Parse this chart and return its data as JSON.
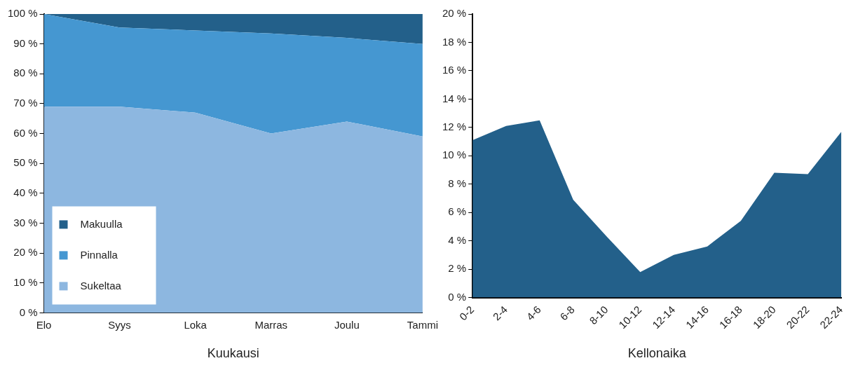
{
  "chart_data": [
    {
      "type": "area",
      "xlabel": "Kuukausi",
      "categories": [
        "Elo",
        "Syys",
        "Loka",
        "Marras",
        "Joulu",
        "Tammi"
      ],
      "stacked": true,
      "legend": "bottom left",
      "grid": false,
      "ylim": [
        0,
        100
      ],
      "yticks": [
        {
          "value": 0,
          "label": "0 %"
        },
        {
          "value": 10,
          "label": "10 %"
        },
        {
          "value": 20,
          "label": "20 %"
        },
        {
          "value": 30,
          "label": "30 %"
        },
        {
          "value": 40,
          "label": "40 %"
        },
        {
          "value": 50,
          "label": "50 %"
        },
        {
          "value": 60,
          "label": "60 %"
        },
        {
          "value": 70,
          "label": "70 %"
        },
        {
          "value": 80,
          "label": "80 %"
        },
        {
          "value": 90,
          "label": "90 %"
        },
        {
          "value": 100,
          "label": "100 %"
        }
      ],
      "series": [
        {
          "name": "Sukeltaa",
          "color": "#8db7e0",
          "values": [
            69,
            69,
            67,
            60,
            64,
            59
          ]
        },
        {
          "name": "Pinnalla",
          "color": "#4597d1",
          "values": [
            31,
            26.5,
            27.5,
            33.5,
            28,
            31
          ]
        },
        {
          "name": "Makuulla",
          "color": "#23608a",
          "values": [
            0,
            4.5,
            5.5,
            6.5,
            8,
            10
          ]
        }
      ]
    },
    {
      "type": "area",
      "xlabel": "Kellonaika",
      "categories": [
        "0-2",
        "2-4",
        "4-6",
        "6-8",
        "8-10",
        "10-12",
        "12-14",
        "14-16",
        "16-18",
        "18-20",
        "20-22",
        "22-24"
      ],
      "grid": false,
      "legend": false,
      "ylim": [
        0,
        20
      ],
      "yticks": [
        {
          "value": 0,
          "label": "0 %"
        },
        {
          "value": 2,
          "label": "2 %"
        },
        {
          "value": 4,
          "label": "4 %"
        },
        {
          "value": 6,
          "label": "6 %"
        },
        {
          "value": 8,
          "label": "8 %"
        },
        {
          "value": 10,
          "label": "10 %"
        },
        {
          "value": 12,
          "label": "12 %"
        },
        {
          "value": 14,
          "label": "14 %"
        },
        {
          "value": 16,
          "label": "16 %"
        },
        {
          "value": 18,
          "label": "18 %"
        },
        {
          "value": 20,
          "label": "20 %"
        }
      ],
      "series": [
        {
          "color": "#23608a",
          "values": [
            11.1,
            12.1,
            12.5,
            6.9,
            4.3,
            1.8,
            3.0,
            3.6,
            5.4,
            8.8,
            8.7,
            11.7
          ]
        }
      ]
    }
  ]
}
